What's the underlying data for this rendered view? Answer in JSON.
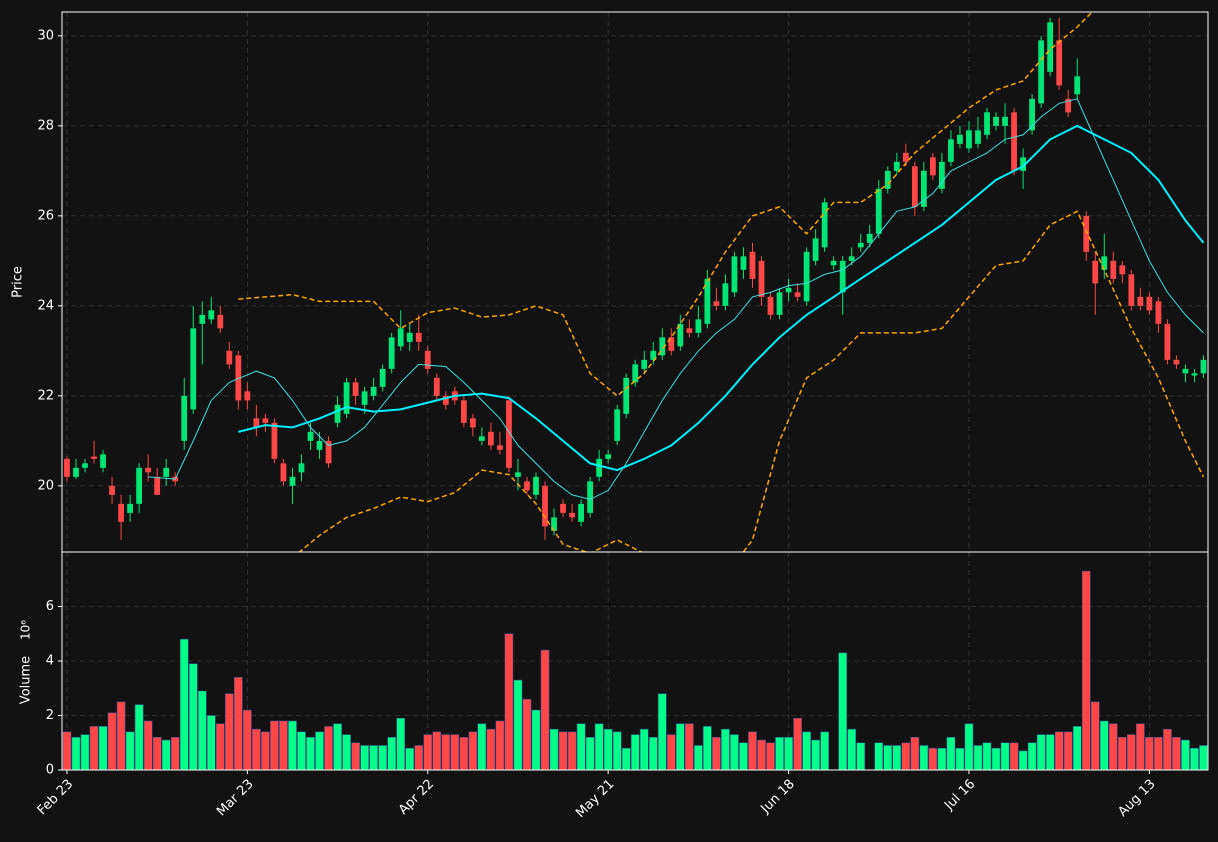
{
  "chart_data": {
    "type": "candlestick",
    "ylabel": "Price",
    "volume_label": "Volume",
    "volume_exponent": "10⁶",
    "up_color": "#00e676",
    "down_color": "#ff4747",
    "volume_up_color": "#00ff88",
    "volume_down_color": "#ff4747",
    "grid": true,
    "categories": [
      "Feb 23",
      null,
      null,
      null,
      null,
      null,
      null,
      null,
      null,
      null,
      null,
      null,
      null,
      null,
      null,
      null,
      null,
      null,
      null,
      null,
      "Mar 23",
      null,
      null,
      null,
      null,
      null,
      null,
      null,
      null,
      null,
      null,
      null,
      null,
      null,
      null,
      null,
      null,
      null,
      null,
      null,
      "Apr 22",
      null,
      null,
      null,
      null,
      null,
      null,
      null,
      null,
      null,
      null,
      null,
      null,
      null,
      null,
      null,
      null,
      null,
      null,
      null,
      "May 21",
      null,
      null,
      null,
      null,
      null,
      null,
      null,
      null,
      null,
      null,
      null,
      null,
      null,
      null,
      null,
      null,
      null,
      null,
      null,
      "Jun 18",
      null,
      null,
      null,
      null,
      null,
      null,
      null,
      null,
      null,
      null,
      null,
      null,
      null,
      null,
      null,
      null,
      null,
      null,
      null,
      "Jul 16",
      null,
      null,
      null,
      null,
      null,
      null,
      null,
      null,
      null,
      null,
      null,
      null,
      null,
      null,
      null,
      null,
      null,
      null,
      null,
      "Aug 13",
      null,
      null,
      null,
      null,
      null,
      null
    ],
    "open": [
      20.6,
      20.2,
      20.4,
      20.65,
      20.4,
      20.0,
      19.6,
      19.4,
      19.6,
      20.4,
      20.2,
      20.2,
      20.2,
      21.0,
      21.7,
      23.6,
      23.7,
      23.8,
      23.0,
      22.9,
      22.1,
      21.5,
      21.5,
      21.4,
      20.5,
      20.0,
      20.3,
      21.0,
      20.8,
      21.0,
      21.4,
      21.6,
      22.3,
      21.8,
      22.0,
      22.2,
      22.6,
      23.1,
      23.2,
      23.4,
      23.0,
      22.4,
      22.0,
      22.1,
      21.9,
      21.5,
      21.0,
      21.2,
      20.9,
      21.9,
      20.2,
      20.1,
      19.8,
      20.0,
      19.0,
      19.6,
      19.4,
      19.2,
      19.4,
      20.2,
      20.6,
      21.0,
      21.6,
      22.3,
      22.6,
      22.8,
      22.9,
      23.3,
      23.1,
      23.5,
      23.4,
      23.6,
      24.1,
      24.0,
      24.3,
      24.8,
      25.2,
      25.0,
      24.2,
      23.8,
      24.3,
      24.3,
      24.1,
      25.0,
      25.3,
      24.9,
      24.3,
      25.0,
      25.3,
      25.4,
      25.6,
      26.6,
      27.0,
      27.4,
      27.1,
      26.2,
      27.3,
      26.6,
      27.2,
      27.6,
      27.5,
      27.6,
      27.8,
      28.0,
      28.0,
      28.3,
      27.0,
      27.9,
      28.5,
      29.2,
      29.9,
      28.6,
      28.7,
      26.0,
      25.0,
      24.8,
      25.0,
      24.9,
      24.7,
      24.2,
      24.2,
      24.1,
      23.6,
      22.8,
      22.5,
      22.45,
      22.5
    ],
    "high": [
      20.65,
      20.6,
      20.6,
      21.0,
      20.8,
      20.2,
      19.8,
      19.8,
      20.5,
      20.7,
      20.4,
      20.6,
      20.3,
      22.4,
      24.0,
      24.1,
      24.2,
      24.0,
      23.2,
      23.0,
      22.3,
      21.8,
      21.6,
      21.5,
      20.6,
      20.4,
      20.7,
      21.4,
      21.2,
      21.1,
      22.0,
      22.4,
      22.4,
      22.2,
      22.4,
      22.7,
      23.4,
      23.9,
      23.6,
      23.8,
      23.1,
      22.5,
      22.1,
      22.2,
      22.0,
      21.6,
      21.3,
      21.4,
      21.2,
      22.0,
      20.6,
      20.2,
      20.3,
      20.1,
      19.5,
      19.7,
      19.6,
      19.7,
      20.2,
      20.8,
      20.8,
      21.8,
      22.5,
      22.8,
      23.0,
      23.2,
      23.5,
      23.5,
      23.8,
      23.7,
      24.0,
      24.8,
      24.4,
      24.7,
      25.2,
      25.3,
      25.4,
      25.1,
      24.3,
      24.4,
      24.6,
      24.5,
      25.3,
      25.7,
      26.4,
      25.1,
      25.1,
      25.3,
      25.6,
      25.8,
      26.8,
      27.1,
      27.4,
      27.6,
      27.2,
      27.2,
      27.4,
      27.4,
      27.9,
      28.0,
      28.1,
      28.2,
      28.4,
      28.3,
      28.5,
      28.4,
      27.5,
      28.7,
      30.0,
      30.4,
      30.4,
      28.8,
      29.5,
      26.1,
      25.2,
      25.6,
      25.2,
      25.0,
      24.8,
      24.4,
      24.3,
      24.2,
      23.7,
      22.9,
      22.7,
      22.6,
      22.9
    ],
    "low": [
      20.1,
      20.15,
      20.3,
      20.5,
      20.3,
      19.6,
      18.8,
      19.2,
      19.4,
      20.1,
      19.8,
      20.0,
      20.0,
      20.8,
      21.6,
      22.7,
      23.6,
      23.4,
      22.6,
      21.7,
      21.7,
      21.1,
      21.2,
      20.5,
      20.0,
      19.6,
      20.1,
      20.8,
      20.6,
      20.4,
      21.3,
      21.5,
      21.8,
      21.6,
      21.9,
      22.1,
      22.5,
      23.0,
      23.0,
      23.0,
      22.5,
      21.9,
      21.7,
      21.8,
      21.3,
      21.1,
      20.9,
      20.8,
      20.7,
      20.3,
      19.9,
      19.8,
      19.7,
      18.8,
      18.9,
      19.3,
      19.2,
      19.1,
      19.3,
      20.1,
      20.5,
      20.9,
      21.5,
      22.2,
      22.5,
      22.7,
      22.8,
      22.9,
      23.0,
      23.3,
      23.3,
      23.5,
      23.9,
      23.9,
      24.2,
      24.6,
      24.4,
      24.0,
      23.7,
      23.7,
      24.1,
      24.1,
      24.0,
      24.9,
      25.2,
      24.8,
      23.8,
      24.9,
      25.2,
      25.3,
      25.5,
      26.5,
      26.9,
      27.1,
      26.0,
      26.1,
      26.8,
      26.5,
      27.1,
      27.5,
      27.4,
      27.5,
      27.7,
      27.9,
      27.6,
      26.9,
      26.6,
      27.8,
      28.4,
      29.1,
      28.8,
      28.2,
      28.6,
      25.0,
      23.8,
      24.6,
      24.5,
      24.5,
      23.9,
      23.9,
      23.8,
      23.4,
      22.7,
      22.6,
      22.3,
      22.3,
      22.4
    ],
    "close": [
      20.2,
      20.4,
      20.5,
      20.6,
      20.7,
      19.8,
      19.2,
      19.6,
      20.4,
      20.3,
      19.8,
      20.4,
      20.1,
      22.0,
      23.5,
      23.8,
      23.9,
      23.5,
      22.7,
      21.9,
      21.9,
      21.3,
      21.4,
      20.6,
      20.1,
      20.2,
      20.5,
      21.2,
      21.0,
      20.5,
      21.8,
      22.3,
      22.0,
      22.1,
      22.2,
      22.6,
      23.3,
      23.5,
      23.4,
      23.2,
      22.6,
      22.0,
      21.8,
      21.9,
      21.4,
      21.3,
      21.1,
      20.9,
      20.8,
      20.4,
      20.3,
      19.9,
      20.2,
      19.1,
      19.3,
      19.4,
      19.3,
      19.6,
      20.1,
      20.6,
      20.7,
      21.7,
      22.4,
      22.7,
      22.8,
      23.0,
      23.3,
      23.0,
      23.6,
      23.4,
      23.7,
      24.6,
      24.0,
      24.5,
      25.1,
      25.1,
      24.6,
      24.2,
      23.8,
      24.3,
      24.4,
      24.2,
      25.2,
      25.5,
      26.3,
      25.0,
      25.0,
      25.1,
      25.4,
      25.6,
      26.6,
      27.0,
      27.2,
      27.2,
      26.2,
      27.0,
      26.9,
      27.2,
      27.7,
      27.8,
      27.9,
      27.9,
      28.3,
      28.2,
      28.2,
      27.0,
      27.3,
      28.6,
      29.9,
      30.3,
      28.9,
      28.3,
      29.1,
      25.2,
      24.5,
      25.1,
      24.6,
      24.7,
      24.0,
      24.0,
      23.9,
      23.6,
      22.8,
      22.7,
      22.6,
      22.5,
      22.8
    ],
    "volume": [
      1.4,
      1.2,
      1.3,
      1.6,
      1.6,
      2.1,
      2.5,
      1.4,
      2.4,
      1.8,
      1.2,
      1.1,
      1.2,
      4.8,
      3.9,
      2.9,
      2.0,
      1.7,
      2.8,
      3.4,
      2.2,
      1.5,
      1.4,
      1.8,
      1.8,
      1.8,
      1.4,
      1.2,
      1.4,
      1.6,
      1.7,
      1.3,
      1.0,
      0.9,
      0.9,
      0.9,
      1.2,
      1.9,
      0.8,
      0.9,
      1.3,
      1.4,
      1.3,
      1.3,
      1.2,
      1.4,
      1.7,
      1.5,
      1.8,
      5.0,
      3.3,
      2.6,
      2.2,
      4.4,
      1.5,
      1.4,
      1.4,
      1.7,
      1.2,
      1.7,
      1.5,
      1.4,
      0.8,
      1.3,
      1.5,
      1.2,
      2.8,
      1.3,
      1.7,
      1.7,
      0.9,
      1.6,
      1.2,
      1.5,
      1.3,
      1.0,
      1.4,
      1.1,
      1.0,
      1.2,
      1.2,
      1.9,
      1.4,
      1.1,
      1.4,
      0,
      4.3,
      1.5,
      1.0,
      0,
      1.0,
      0.9,
      0.9,
      1.0,
      1.2,
      0.9,
      0.8,
      0.8,
      1.2,
      0.8,
      1.7,
      0.9,
      1.0,
      0.8,
      1.0,
      1.0,
      0.7,
      1.0,
      1.3,
      1.3,
      1.4,
      1.4,
      1.6,
      7.3,
      2.5,
      1.8,
      1.7,
      1.2,
      1.3,
      1.7,
      1.2,
      1.2,
      1.5,
      1.2,
      1.1,
      0.8,
      0.9
    ],
    "ylim": [
      18.53,
      30.53
    ],
    "yticks": [
      20,
      22,
      24,
      26,
      28,
      30
    ],
    "volume_ylim": [
      0,
      8
    ],
    "volume_yticks": [
      0,
      2,
      4,
      6
    ],
    "overlays": [
      {
        "color": "#40e0e0",
        "width": 1,
        "dash": false,
        "x": [
          9,
          12,
          14,
          16,
          18,
          21,
          23,
          25,
          27,
          29,
          31,
          33,
          35,
          37,
          39,
          42,
          44,
          46,
          48,
          50,
          52,
          54,
          56,
          58,
          60,
          62,
          64,
          66,
          68,
          70,
          72,
          74,
          76,
          78,
          80,
          82,
          84,
          86,
          88,
          90,
          92,
          94,
          96,
          98,
          100,
          102,
          104,
          106,
          108,
          110,
          112,
          114,
          116,
          118,
          120,
          122,
          124,
          126
        ],
        "values": [
          20.2,
          20.15,
          21.0,
          21.9,
          22.3,
          22.55,
          22.4,
          21.9,
          21.3,
          20.9,
          21.0,
          21.3,
          21.8,
          22.3,
          22.7,
          22.65,
          22.3,
          21.9,
          21.5,
          20.9,
          20.5,
          20.1,
          19.8,
          19.7,
          19.9,
          20.5,
          21.2,
          21.9,
          22.5,
          23.0,
          23.4,
          23.7,
          24.2,
          24.3,
          24.45,
          24.5,
          24.7,
          24.8,
          25.1,
          25.6,
          26.1,
          26.2,
          26.5,
          27.0,
          27.2,
          27.4,
          27.7,
          27.8,
          28.2,
          28.5,
          28.6,
          27.7,
          26.8,
          25.9,
          25.0,
          24.3,
          23.8,
          23.4
        ]
      },
      {
        "color": "#00f0ff",
        "width": 2,
        "dash": false,
        "x": [
          19,
          22,
          25,
          28,
          31,
          34,
          37,
          40,
          43,
          46,
          49,
          52,
          55,
          58,
          61,
          64,
          67,
          70,
          73,
          76,
          79,
          82,
          85,
          88,
          91,
          94,
          97,
          100,
          103,
          106,
          109,
          112,
          115,
          118,
          121,
          124,
          126
        ],
        "values": [
          21.2,
          21.35,
          21.3,
          21.5,
          21.75,
          21.65,
          21.7,
          21.85,
          22.0,
          22.05,
          21.95,
          21.5,
          21.0,
          20.5,
          20.35,
          20.6,
          20.9,
          21.4,
          22.0,
          22.7,
          23.3,
          23.8,
          24.2,
          24.6,
          25.0,
          25.4,
          25.8,
          26.3,
          26.8,
          27.1,
          27.7,
          28.0,
          27.7,
          27.4,
          26.8,
          25.9,
          25.4
        ]
      },
      {
        "color": "#ffa500",
        "width": 1.5,
        "dash": true,
        "x": [
          19,
          22,
          25,
          28,
          31,
          34,
          37,
          40,
          43,
          46,
          49,
          52,
          55,
          58,
          61,
          64,
          67,
          70,
          73,
          76,
          79,
          82,
          85,
          88,
          91,
          94,
          97,
          100,
          103,
          106,
          109,
          112,
          114
        ],
        "values": [
          24.15,
          24.2,
          24.25,
          24.1,
          24.1,
          24.1,
          23.5,
          23.85,
          23.95,
          23.75,
          23.8,
          24.0,
          23.8,
          22.5,
          22.0,
          22.5,
          23.3,
          24.2,
          25.2,
          26.0,
          26.2,
          25.6,
          26.3,
          26.3,
          26.7,
          27.4,
          27.9,
          28.4,
          28.8,
          29.0,
          29.7,
          30.2,
          30.6
        ]
      },
      {
        "color": "#ffa500",
        "width": 1.5,
        "dash": true,
        "x": [
          25,
          28,
          31,
          34,
          37,
          40,
          43,
          46,
          49,
          52,
          55,
          58,
          61,
          64,
          67,
          70,
          73,
          76,
          79,
          82,
          85,
          88,
          91,
          94,
          97,
          100,
          103,
          106,
          109,
          112,
          115,
          118,
          121,
          124,
          126
        ],
        "values": [
          18.4,
          18.9,
          19.3,
          19.5,
          19.75,
          19.65,
          19.85,
          20.35,
          20.25,
          19.6,
          18.7,
          18.5,
          18.8,
          18.5,
          18.0,
          17.8,
          18.0,
          18.8,
          21.0,
          22.4,
          22.8,
          23.4,
          23.4,
          23.4,
          23.5,
          24.2,
          24.9,
          25.0,
          25.8,
          26.1,
          24.8,
          23.5,
          22.4,
          21.0,
          20.2
        ]
      }
    ]
  }
}
